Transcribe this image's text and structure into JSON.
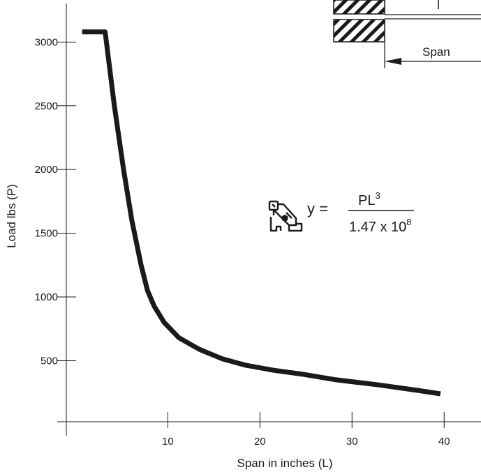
{
  "chart_data": {
    "type": "line",
    "xlabel": "Span in inches (L)",
    "ylabel": "Load lbs (P)",
    "xlim": [
      -2,
      44
    ],
    "ylim": [
      -50,
      3330
    ],
    "x_ticks": [
      {
        "value": 10,
        "label": "10"
      },
      {
        "value": 20,
        "label": "20"
      },
      {
        "value": 30,
        "label": "30"
      },
      {
        "value": 40,
        "label": "40"
      }
    ],
    "y_ticks": [
      {
        "value": 500,
        "label": "500"
      },
      {
        "value": 1000,
        "label": "1000"
      },
      {
        "value": 1500,
        "label": "1500"
      },
      {
        "value": 2000,
        "label": "2000"
      },
      {
        "value": 2500,
        "label": "2500"
      },
      {
        "value": 3000,
        "label": "3000"
      }
    ],
    "grid": false,
    "series": [
      {
        "x": [
          0.7,
          3.2,
          4.2,
          5.2,
          6.1,
          7.1,
          7.8,
          8.5,
          9.6,
          11.2,
          13.4,
          15.9,
          18.4,
          21.5,
          24.5,
          28.3,
          32.9,
          37.3,
          39.6
        ],
        "y": [
          3080,
          3080,
          2500,
          2000,
          1600,
          1250,
          1050,
          930,
          800,
          680,
          590,
          515,
          465,
          425,
          395,
          350,
          310,
          265,
          240
        ],
        "color": "#1a1a1a"
      }
    ]
  },
  "annotation": {
    "formula": {
      "lhs": "y =",
      "numerator": "PL",
      "numerator_exp": "3",
      "denominator": "1.47 x 10",
      "denominator_exp": "8"
    },
    "diagram": {
      "span_label": "Span"
    }
  },
  "colors": {
    "ink": "#1a1a1a",
    "background": "#ffffff"
  }
}
